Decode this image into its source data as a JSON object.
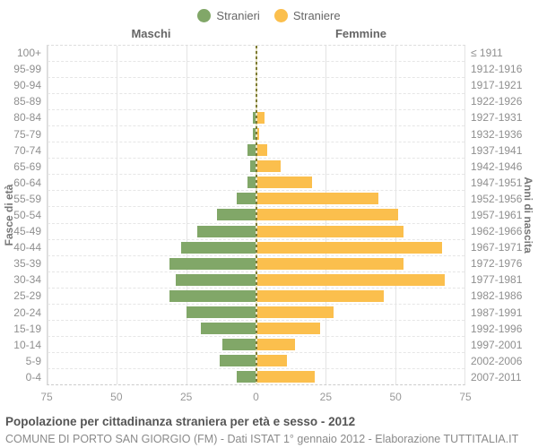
{
  "legend": {
    "male": "Stranieri",
    "female": "Straniere"
  },
  "header": {
    "left": "Maschi",
    "right": "Femmine"
  },
  "axis": {
    "left_label": "Fasce di età",
    "right_label": "Anni di nascita",
    "x_ticks": [
      "75",
      "50",
      "25",
      "0",
      "25",
      "50",
      "75"
    ]
  },
  "colors": {
    "male": "#81A768",
    "female": "#FBBF4D",
    "center_line": "#7D7B33"
  },
  "footer": {
    "title": "Popolazione per cittadinanza straniera per età e sesso - 2012",
    "subtitle": "COMUNE DI PORTO SAN GIORGIO (FM) - Dati ISTAT 1° gennaio 2012 - Elaborazione TUTTITALIA.IT"
  },
  "chart_data": {
    "type": "bar",
    "subtype": "population-pyramid",
    "orientation": "horizontal",
    "title": "Popolazione per cittadinanza straniera per età e sesso - 2012",
    "ylabel_left": "Fasce di età",
    "ylabel_right": "Anni di nascita",
    "xlim": [
      0,
      75
    ],
    "x_tick_step": 25,
    "grid": true,
    "legend_position": "top-center",
    "age_groups": [
      "100+",
      "95-99",
      "90-94",
      "85-89",
      "80-84",
      "75-79",
      "70-74",
      "65-69",
      "60-64",
      "55-59",
      "50-54",
      "45-49",
      "40-44",
      "35-39",
      "30-34",
      "25-29",
      "20-24",
      "15-19",
      "10-14",
      "5-9",
      "0-4"
    ],
    "birth_years": [
      "≤ 1911",
      "1912-1916",
      "1917-1921",
      "1922-1926",
      "1927-1931",
      "1932-1936",
      "1937-1941",
      "1942-1946",
      "1947-1951",
      "1952-1956",
      "1957-1961",
      "1962-1966",
      "1967-1971",
      "1972-1976",
      "1977-1981",
      "1982-1986",
      "1987-1991",
      "1992-1996",
      "1997-2001",
      "2002-2006",
      "2007-2011"
    ],
    "series": [
      {
        "name": "Stranieri",
        "sex": "Maschi",
        "side": "left",
        "color": "#81A768",
        "values": [
          0,
          0,
          0,
          0,
          1,
          1,
          3,
          2,
          3,
          7,
          14,
          21,
          27,
          31,
          29,
          31,
          25,
          20,
          12,
          13,
          7
        ]
      },
      {
        "name": "Straniere",
        "sex": "Femmine",
        "side": "right",
        "color": "#FBBF4D",
        "values": [
          0,
          0,
          0,
          0,
          3,
          1,
          4,
          9,
          20,
          44,
          51,
          53,
          67,
          53,
          68,
          46,
          28,
          23,
          14,
          11,
          21
        ]
      }
    ]
  }
}
